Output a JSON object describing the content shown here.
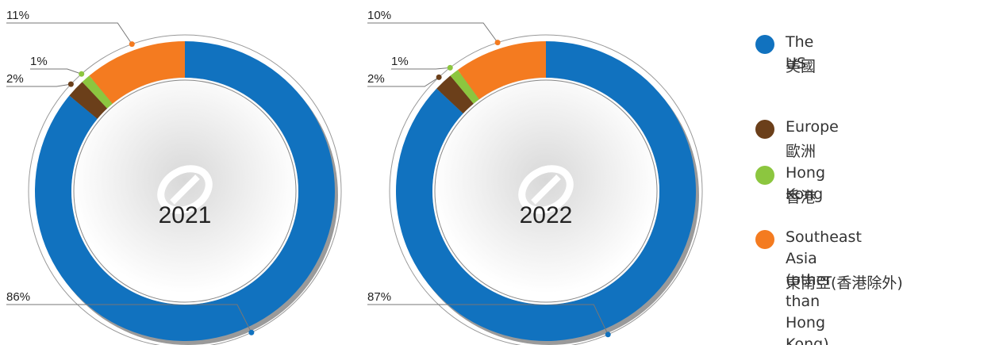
{
  "chart_data": [
    {
      "type": "pie",
      "title": "2021",
      "values": [
        86,
        2,
        1,
        11
      ]
    },
    {
      "type": "pie",
      "title": "2022",
      "values": [
        87,
        2,
        1,
        10
      ]
    }
  ],
  "legend": {
    "names": [
      "The US",
      "Europe",
      "Hong Kong",
      "Southeast Asia\n(other than Hong Kong)"
    ],
    "names_zh": [
      "美國",
      "歐洲",
      "香港",
      "東南亞(香港除外)"
    ],
    "colors": [
      "#1172bf",
      "#6b3f1a",
      "#8cc63f",
      "#f47b20"
    ]
  }
}
